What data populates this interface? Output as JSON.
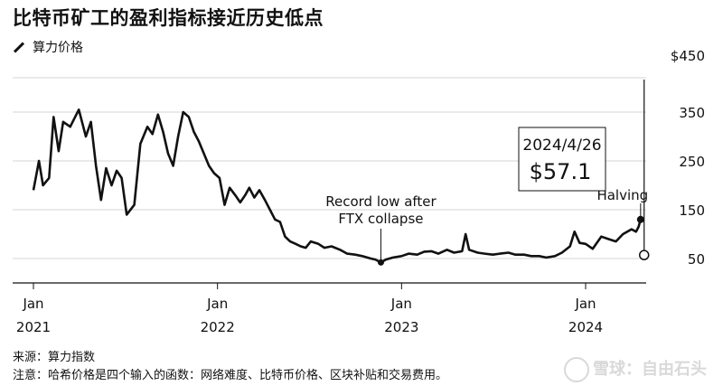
{
  "title": "比特币矿工的盈利指标接近历史低点",
  "subtitle": "算力价格",
  "chart_data": {
    "type": "line",
    "title": "比特币矿工的盈利指标接近历史低点",
    "subtitle": "算力价格",
    "ylabel": "",
    "xlabel": "",
    "ylim": [
      0,
      450
    ],
    "y_ticks": [
      {
        "value": 450,
        "label": "$450"
      },
      {
        "value": 350,
        "label": "350"
      },
      {
        "value": 250,
        "label": "250"
      },
      {
        "value": 150,
        "label": "150"
      },
      {
        "value": 50,
        "label": "50"
      }
    ],
    "x_ticks": [
      {
        "date": "2021-01-01",
        "month": "Jan",
        "year": "2021"
      },
      {
        "date": "2022-01-01",
        "month": "Jan",
        "year": "2022"
      },
      {
        "date": "2023-01-01",
        "month": "Jan",
        "year": "2023"
      },
      {
        "date": "2024-01-01",
        "month": "Jan",
        "year": "2024"
      }
    ],
    "grid": true,
    "series": [
      {
        "x": [
          "2021-01-01",
          "2021-01-12",
          "2021-01-20",
          "2021-02-01",
          "2021-02-10",
          "2021-02-20",
          "2021-03-01",
          "2021-03-15",
          "2021-04-01",
          "2021-04-15",
          "2021-04-25",
          "2021-05-05",
          "2021-05-15",
          "2021-05-25",
          "2021-06-05",
          "2021-06-15",
          "2021-06-25",
          "2021-07-05",
          "2021-07-20",
          "2021-08-01",
          "2021-08-15",
          "2021-08-25",
          "2021-09-05",
          "2021-09-15",
          "2021-09-25",
          "2021-10-05",
          "2021-10-15",
          "2021-10-25",
          "2021-11-05",
          "2021-11-15",
          "2021-11-25",
          "2021-12-05",
          "2021-12-15",
          "2021-12-25",
          "2022-01-05",
          "2022-01-15",
          "2022-01-25",
          "2022-02-05",
          "2022-02-15",
          "2022-02-25",
          "2022-03-05",
          "2022-03-15",
          "2022-03-25",
          "2022-04-05",
          "2022-04-15",
          "2022-04-25",
          "2022-05-05",
          "2022-05-15",
          "2022-05-25",
          "2022-06-05",
          "2022-06-15",
          "2022-06-25",
          "2022-07-05",
          "2022-07-20",
          "2022-08-01",
          "2022-08-15",
          "2022-09-01",
          "2022-09-15",
          "2022-10-01",
          "2022-10-15",
          "2022-11-01",
          "2022-11-10",
          "2022-11-21",
          "2022-12-01",
          "2022-12-15",
          "2023-01-01",
          "2023-01-15",
          "2023-02-01",
          "2023-02-15",
          "2023-03-01",
          "2023-03-15",
          "2023-04-01",
          "2023-04-15",
          "2023-05-01",
          "2023-05-08",
          "2023-05-15",
          "2023-06-01",
          "2023-06-15",
          "2023-07-01",
          "2023-07-15",
          "2023-08-01",
          "2023-08-15",
          "2023-09-01",
          "2023-09-15",
          "2023-10-01",
          "2023-10-15",
          "2023-11-01",
          "2023-11-15",
          "2023-12-01",
          "2023-12-10",
          "2023-12-20",
          "2024-01-01",
          "2024-01-15",
          "2024-02-01",
          "2024-02-15",
          "2024-03-01",
          "2024-03-15",
          "2024-04-01",
          "2024-04-10",
          "2024-04-15",
          "2024-04-19"
        ],
        "values": [
          190,
          250,
          200,
          215,
          340,
          270,
          330,
          320,
          355,
          300,
          330,
          240,
          170,
          235,
          200,
          230,
          215,
          140,
          160,
          285,
          320,
          305,
          345,
          310,
          265,
          240,
          300,
          350,
          340,
          310,
          290,
          265,
          240,
          225,
          215,
          160,
          195,
          180,
          165,
          180,
          195,
          175,
          190,
          170,
          150,
          130,
          125,
          95,
          85,
          80,
          75,
          72,
          85,
          80,
          72,
          75,
          68,
          60,
          58,
          55,
          50,
          48,
          42,
          48,
          52,
          55,
          60,
          58,
          64,
          65,
          60,
          68,
          62,
          65,
          100,
          68,
          62,
          60,
          58,
          60,
          62,
          58,
          58,
          55,
          55,
          52,
          55,
          62,
          75,
          105,
          82,
          80,
          70,
          95,
          90,
          85,
          100,
          110,
          105,
          115,
          130
        ],
        "end_value": 57.1
      }
    ],
    "annotations": [
      {
        "text_line1": "Record low after",
        "text_line2": "FTX collapse",
        "date": "2022-11-21",
        "value": 42
      },
      {
        "text": "Halving",
        "date": "2024-04-19",
        "value": 130
      },
      {
        "date_label": "2024/4/26",
        "value_label": "$57.1",
        "date": "2024-04-26",
        "value": 57.1
      }
    ]
  },
  "footnotes": {
    "source": "来源：算力指数",
    "note": "注意：哈希价格是四个输入的函数：网络难度、比特币价格、区块补贴和交易费用。"
  },
  "watermark": "雪球：自由石头"
}
